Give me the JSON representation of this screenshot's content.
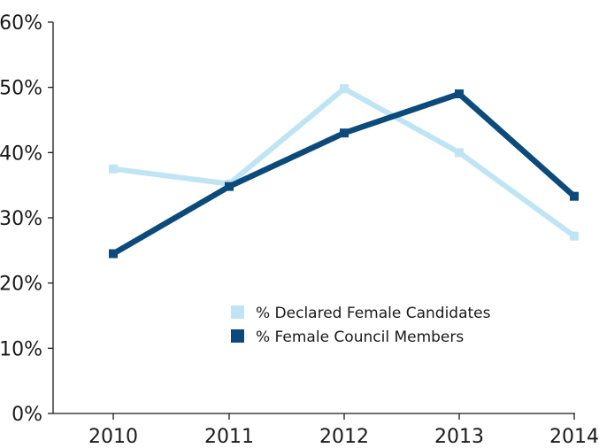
{
  "chart_data": {
    "type": "line",
    "categories": [
      "2010",
      "2011",
      "2012",
      "2013",
      "2014"
    ],
    "ylim": [
      0,
      60
    ],
    "yticks": [
      0,
      10,
      20,
      30,
      40,
      50,
      60
    ],
    "ytick_labels": [
      "0%",
      "10%",
      "20%",
      "30%",
      "40%",
      "50%",
      "60%"
    ],
    "grid": false,
    "legend_position": "bottom-right",
    "series": [
      {
        "name": "% Declared Female Candidates",
        "values": [
          37.5,
          35.2,
          49.8,
          40.0,
          27.2
        ],
        "color": "#bfe4f4"
      },
      {
        "name": "% Female Council Members",
        "values": [
          24.5,
          34.8,
          43.0,
          49.0,
          33.3
        ],
        "color": "#0b4a7a"
      }
    ]
  }
}
